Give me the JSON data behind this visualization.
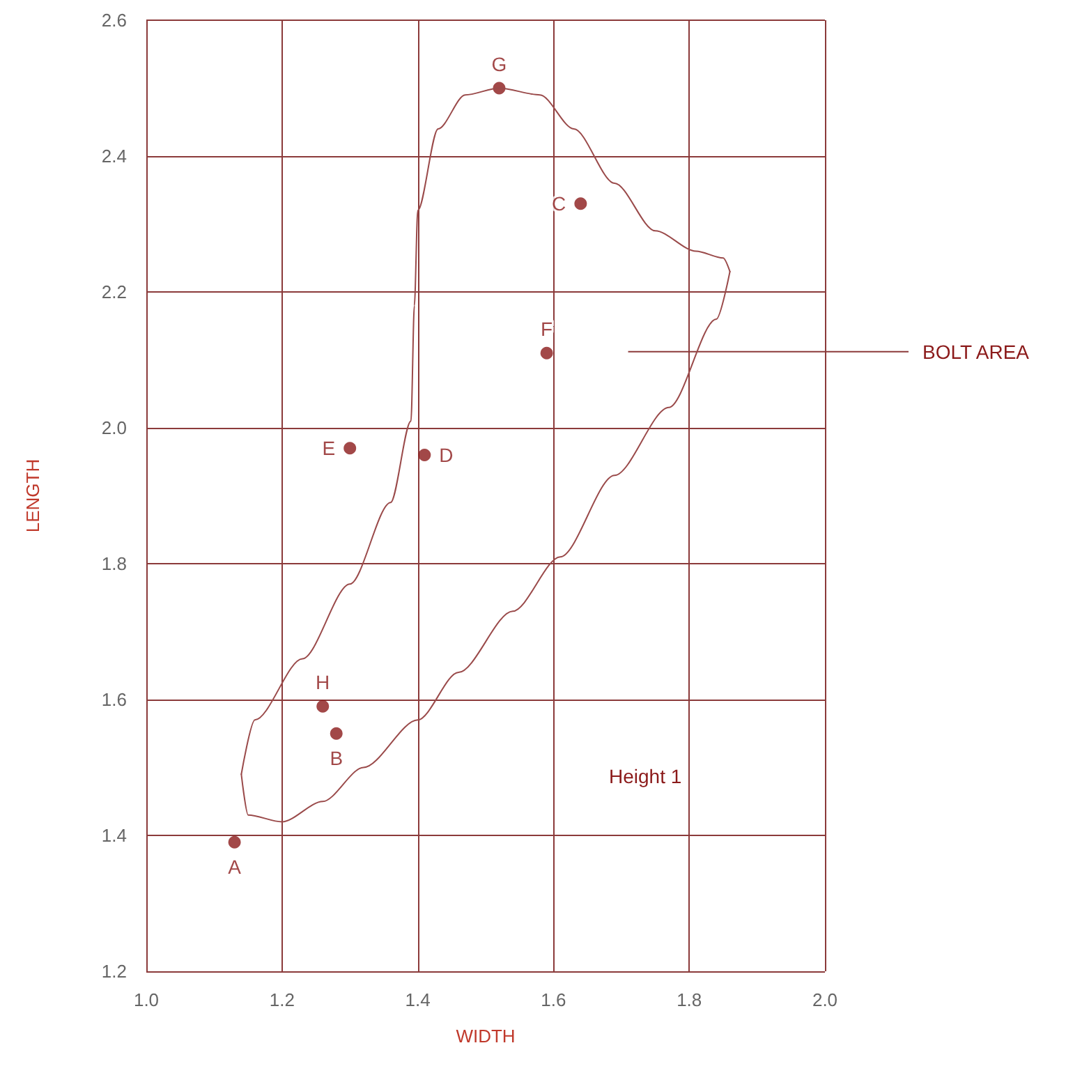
{
  "chart_data": {
    "type": "scatter",
    "xlabel": "WIDTH",
    "ylabel": "LENGTH",
    "xlim": [
      1.0,
      2.0
    ],
    "xticks": [
      {
        "value": 1.0,
        "label": "1.0"
      },
      1.2,
      1.4,
      1.6,
      1.8,
      {
        "value": 2.0,
        "label": "2.0"
      }
    ],
    "ylim": [
      1.2,
      2.6
    ],
    "yticks": [
      1.2,
      1.4,
      1.6,
      1.8,
      {
        "value": 2.0,
        "label": "2.0"
      },
      2.2,
      2.4,
      2.6
    ],
    "grid": true,
    "marker": "circle",
    "series": [
      {
        "color": "#8b1a1a",
        "x": [
          1.13,
          1.28,
          1.64,
          1.41,
          1.3,
          1.59,
          1.52,
          1.26
        ],
        "values": [
          1.39,
          1.55,
          2.33,
          1.96,
          1.97,
          2.11,
          2.5,
          1.59
        ],
        "value_labels": [
          "A",
          "B",
          "C",
          "D",
          "E",
          "F",
          "G",
          "H"
        ]
      },
      {
        "type": "line",
        "color": "#9a4a4a",
        "marker": "none",
        "x": [
          1.14,
          1.16,
          1.23,
          1.3,
          1.36,
          1.39,
          1.395,
          1.4,
          1.43,
          1.47,
          1.52,
          1.58,
          1.63,
          1.69,
          1.75,
          1.81,
          1.85,
          1.86
        ],
        "values": [
          1.49,
          1.57,
          1.66,
          1.77,
          1.89,
          2.01,
          2.18,
          2.32,
          2.44,
          2.49,
          2.5,
          2.49,
          2.44,
          2.36,
          2.29,
          2.26,
          2.25,
          2.23
        ]
      },
      {
        "type": "line",
        "color": "#9a4a4a",
        "marker": "none",
        "x": [
          1.14,
          1.15,
          1.2,
          1.26,
          1.32,
          1.4,
          1.46,
          1.54,
          1.61,
          1.69,
          1.77,
          1.84,
          1.86
        ],
        "values": [
          1.49,
          1.43,
          1.42,
          1.45,
          1.5,
          1.57,
          1.64,
          1.73,
          1.81,
          1.93,
          2.03,
          2.16,
          2.23
        ]
      }
    ],
    "annotations": [
      "BOLT AREA",
      "Height 1"
    ]
  }
}
